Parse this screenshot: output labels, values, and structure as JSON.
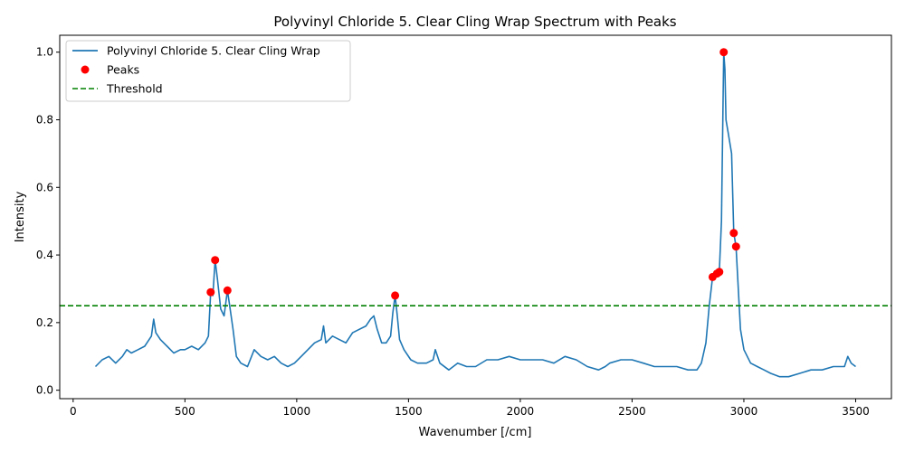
{
  "chart_data": {
    "type": "line",
    "title": "Polyvinyl Chloride 5. Clear Cling Wrap Spectrum with Peaks",
    "xlabel": "Wavenumber [/cm]",
    "ylabel": "Intensity",
    "xlim": [
      -60,
      3660
    ],
    "ylim": [
      -0.025,
      1.05
    ],
    "xticks": [
      0,
      500,
      1000,
      1500,
      2000,
      2500,
      3000,
      3500
    ],
    "yticks": [
      0.0,
      0.2,
      0.4,
      0.6,
      0.8,
      1.0
    ],
    "grid": false,
    "legend_position": "top-left",
    "series": [
      {
        "name": "Polyvinyl Chloride 5. Clear Cling Wrap",
        "kind": "line",
        "color": "#1f77b4",
        "x": [
          100,
          130,
          160,
          190,
          220,
          240,
          260,
          290,
          320,
          350,
          360,
          370,
          390,
          420,
          450,
          480,
          500,
          530,
          560,
          590,
          605,
          615,
          625,
          635,
          645,
          660,
          675,
          690,
          700,
          715,
          730,
          750,
          780,
          810,
          840,
          870,
          900,
          930,
          960,
          990,
          1020,
          1050,
          1080,
          1110,
          1120,
          1130,
          1160,
          1190,
          1220,
          1250,
          1280,
          1310,
          1330,
          1345,
          1360,
          1380,
          1400,
          1420,
          1430,
          1440,
          1450,
          1460,
          1480,
          1510,
          1540,
          1580,
          1610,
          1620,
          1640,
          1680,
          1720,
          1760,
          1800,
          1850,
          1900,
          1950,
          2000,
          2050,
          2100,
          2150,
          2200,
          2250,
          2300,
          2350,
          2380,
          2400,
          2450,
          2500,
          2550,
          2600,
          2650,
          2700,
          2750,
          2790,
          2810,
          2830,
          2845,
          2860,
          2875,
          2890,
          2900,
          2910,
          2915,
          2920,
          2930,
          2945,
          2955,
          2965,
          2975,
          2985,
          3000,
          3030,
          3060,
          3090,
          3120,
          3160,
          3200,
          3250,
          3300,
          3350,
          3400,
          3450,
          3465,
          3480,
          3500
        ],
        "y": [
          0.07,
          0.09,
          0.1,
          0.08,
          0.1,
          0.12,
          0.11,
          0.12,
          0.13,
          0.16,
          0.21,
          0.17,
          0.15,
          0.13,
          0.11,
          0.12,
          0.12,
          0.13,
          0.12,
          0.14,
          0.16,
          0.29,
          0.28,
          0.385,
          0.33,
          0.24,
          0.22,
          0.295,
          0.25,
          0.18,
          0.1,
          0.08,
          0.07,
          0.12,
          0.1,
          0.09,
          0.1,
          0.08,
          0.07,
          0.08,
          0.1,
          0.12,
          0.14,
          0.15,
          0.19,
          0.14,
          0.16,
          0.15,
          0.14,
          0.17,
          0.18,
          0.19,
          0.21,
          0.22,
          0.18,
          0.14,
          0.14,
          0.16,
          0.23,
          0.28,
          0.22,
          0.15,
          0.12,
          0.09,
          0.08,
          0.08,
          0.09,
          0.12,
          0.08,
          0.06,
          0.08,
          0.07,
          0.07,
          0.09,
          0.09,
          0.1,
          0.09,
          0.09,
          0.09,
          0.08,
          0.1,
          0.09,
          0.07,
          0.06,
          0.07,
          0.08,
          0.09,
          0.09,
          0.08,
          0.07,
          0.07,
          0.07,
          0.06,
          0.06,
          0.08,
          0.14,
          0.25,
          0.335,
          0.345,
          0.35,
          0.5,
          1.0,
          0.95,
          0.8,
          0.76,
          0.7,
          0.465,
          0.425,
          0.3,
          0.18,
          0.12,
          0.08,
          0.07,
          0.06,
          0.05,
          0.04,
          0.04,
          0.05,
          0.06,
          0.06,
          0.07,
          0.07,
          0.1,
          0.08,
          0.07
        ]
      },
      {
        "name": "Peaks",
        "kind": "scatter",
        "color": "#ff0000",
        "x": [
          615,
          635,
          690,
          1440,
          2860,
          2880,
          2890,
          2910,
          2955,
          2965
        ],
        "y": [
          0.29,
          0.385,
          0.295,
          0.28,
          0.335,
          0.345,
          0.35,
          1.0,
          0.465,
          0.425
        ]
      },
      {
        "name": "Threshold",
        "kind": "hline",
        "color": "#008000",
        "y": 0.25
      }
    ]
  }
}
